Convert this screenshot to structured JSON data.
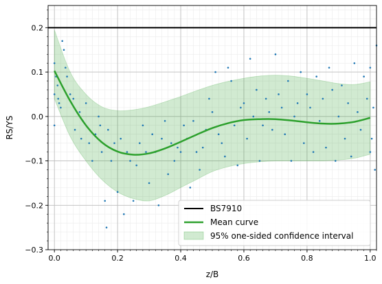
{
  "chart_data": {
    "type": "scatter",
    "xlabel": "z/B",
    "ylabel": "RS/YS",
    "xlim": [
      -0.02,
      1.02
    ],
    "ylim": [
      -0.3,
      0.25
    ],
    "x_ticks": [
      0.0,
      0.2,
      0.4,
      0.6,
      0.8,
      1.0
    ],
    "x_tick_labels": [
      "0.0",
      "0.2",
      "0.4",
      "0.6",
      "0.8",
      "1.0"
    ],
    "y_ticks": [
      -0.3,
      -0.2,
      -0.1,
      0.0,
      0.1,
      0.2
    ],
    "y_tick_labels": [
      "−0.3",
      "−0.2",
      "−0.1",
      "0.0",
      "0.1",
      "0.2"
    ],
    "grid": "major and minor",
    "legend_position": "lower-right",
    "colors": {
      "bs7910": "#000000",
      "mean": "#2ca02c",
      "band_fill": "#2ca02c",
      "points": "#1f77b4"
    },
    "series": [
      {
        "name": "BS7910",
        "kind": "hline",
        "y": 0.2
      },
      {
        "name": "Mean curve",
        "kind": "line",
        "x": [
          0.0,
          0.05,
          0.1,
          0.15,
          0.2,
          0.25,
          0.3,
          0.35,
          0.4,
          0.45,
          0.5,
          0.55,
          0.6,
          0.65,
          0.7,
          0.75,
          0.8,
          0.85,
          0.9,
          0.95,
          1.0
        ],
        "y": [
          0.103,
          0.035,
          -0.02,
          -0.058,
          -0.079,
          -0.086,
          -0.083,
          -0.072,
          -0.057,
          -0.041,
          -0.026,
          -0.015,
          -0.008,
          -0.006,
          -0.006,
          -0.009,
          -0.013,
          -0.016,
          -0.016,
          -0.012,
          -0.003
        ]
      },
      {
        "name": "95% one-sided confidence interval",
        "kind": "band",
        "x": [
          0.0,
          0.05,
          0.1,
          0.15,
          0.2,
          0.25,
          0.3,
          0.35,
          0.4,
          0.45,
          0.5,
          0.55,
          0.6,
          0.65,
          0.7,
          0.75,
          0.8,
          0.85,
          0.9,
          0.95,
          1.0
        ],
        "upper": [
          0.195,
          0.1,
          0.05,
          0.022,
          0.013,
          0.015,
          0.022,
          0.033,
          0.045,
          0.058,
          0.07,
          0.079,
          0.086,
          0.091,
          0.093,
          0.091,
          0.086,
          0.08,
          0.074,
          0.072,
          0.078
        ],
        "lower": [
          0.04,
          -0.045,
          -0.1,
          -0.142,
          -0.17,
          -0.185,
          -0.19,
          -0.178,
          -0.16,
          -0.142,
          -0.124,
          -0.113,
          -0.106,
          -0.102,
          -0.1,
          -0.1,
          -0.1,
          -0.1,
          -0.098,
          -0.094,
          -0.085
        ]
      },
      {
        "name": "",
        "kind": "scatter",
        "x": [
          0.0,
          0.0,
          0.0,
          0.005,
          0.01,
          0.012,
          0.015,
          0.02,
          0.025,
          0.03,
          0.035,
          0.04,
          0.05,
          0.06,
          0.065,
          0.08,
          0.085,
          0.09,
          0.1,
          0.11,
          0.12,
          0.13,
          0.14,
          0.145,
          0.15,
          0.16,
          0.165,
          0.17,
          0.18,
          0.19,
          0.2,
          0.21,
          0.22,
          0.23,
          0.24,
          0.25,
          0.26,
          0.27,
          0.28,
          0.29,
          0.3,
          0.31,
          0.32,
          0.33,
          0.34,
          0.35,
          0.36,
          0.37,
          0.38,
          0.39,
          0.4,
          0.41,
          0.42,
          0.43,
          0.44,
          0.45,
          0.46,
          0.47,
          0.48,
          0.49,
          0.5,
          0.51,
          0.52,
          0.53,
          0.54,
          0.55,
          0.56,
          0.57,
          0.58,
          0.59,
          0.6,
          0.61,
          0.62,
          0.63,
          0.64,
          0.65,
          0.66,
          0.67,
          0.68,
          0.69,
          0.7,
          0.71,
          0.72,
          0.73,
          0.74,
          0.75,
          0.76,
          0.77,
          0.78,
          0.79,
          0.8,
          0.81,
          0.82,
          0.83,
          0.84,
          0.85,
          0.86,
          0.87,
          0.88,
          0.89,
          0.9,
          0.91,
          0.92,
          0.93,
          0.94,
          0.95,
          0.96,
          0.97,
          0.98,
          0.99,
          1.0,
          1.0,
          1.005,
          1.01,
          1.015,
          1.02
        ],
        "y": [
          0.12,
          0.05,
          -0.02,
          0.09,
          0.07,
          0.04,
          0.03,
          0.02,
          0.17,
          0.15,
          0.11,
          0.09,
          0.05,
          0.04,
          -0.03,
          0.01,
          -0.05,
          -0.01,
          0.03,
          -0.06,
          -0.1,
          -0.04,
          0.0,
          -0.02,
          -0.08,
          -0.19,
          -0.25,
          -0.03,
          -0.1,
          -0.06,
          -0.17,
          -0.05,
          -0.22,
          -0.08,
          -0.1,
          -0.19,
          -0.11,
          -0.06,
          -0.02,
          -0.08,
          -0.15,
          -0.04,
          -0.08,
          -0.2,
          -0.05,
          -0.01,
          -0.13,
          -0.06,
          -0.1,
          -0.07,
          -0.08,
          -0.02,
          -0.05,
          -0.16,
          -0.01,
          -0.08,
          -0.12,
          -0.07,
          -0.03,
          0.04,
          0.01,
          0.1,
          -0.04,
          -0.06,
          -0.09,
          0.11,
          0.08,
          -0.02,
          -0.11,
          0.02,
          0.03,
          -0.05,
          0.13,
          0.0,
          0.06,
          -0.1,
          -0.02,
          0.04,
          0.01,
          -0.03,
          0.14,
          0.05,
          0.02,
          -0.04,
          0.08,
          -0.1,
          0.0,
          0.03,
          0.1,
          -0.06,
          0.05,
          0.02,
          -0.08,
          0.09,
          -0.01,
          0.04,
          -0.07,
          0.11,
          0.06,
          -0.1,
          0.0,
          0.07,
          -0.05,
          0.03,
          -0.09,
          0.12,
          0.01,
          -0.03,
          0.09,
          0.04,
          -0.08,
          0.11,
          -0.05,
          0.02,
          -0.12,
          0.16
        ]
      }
    ]
  }
}
